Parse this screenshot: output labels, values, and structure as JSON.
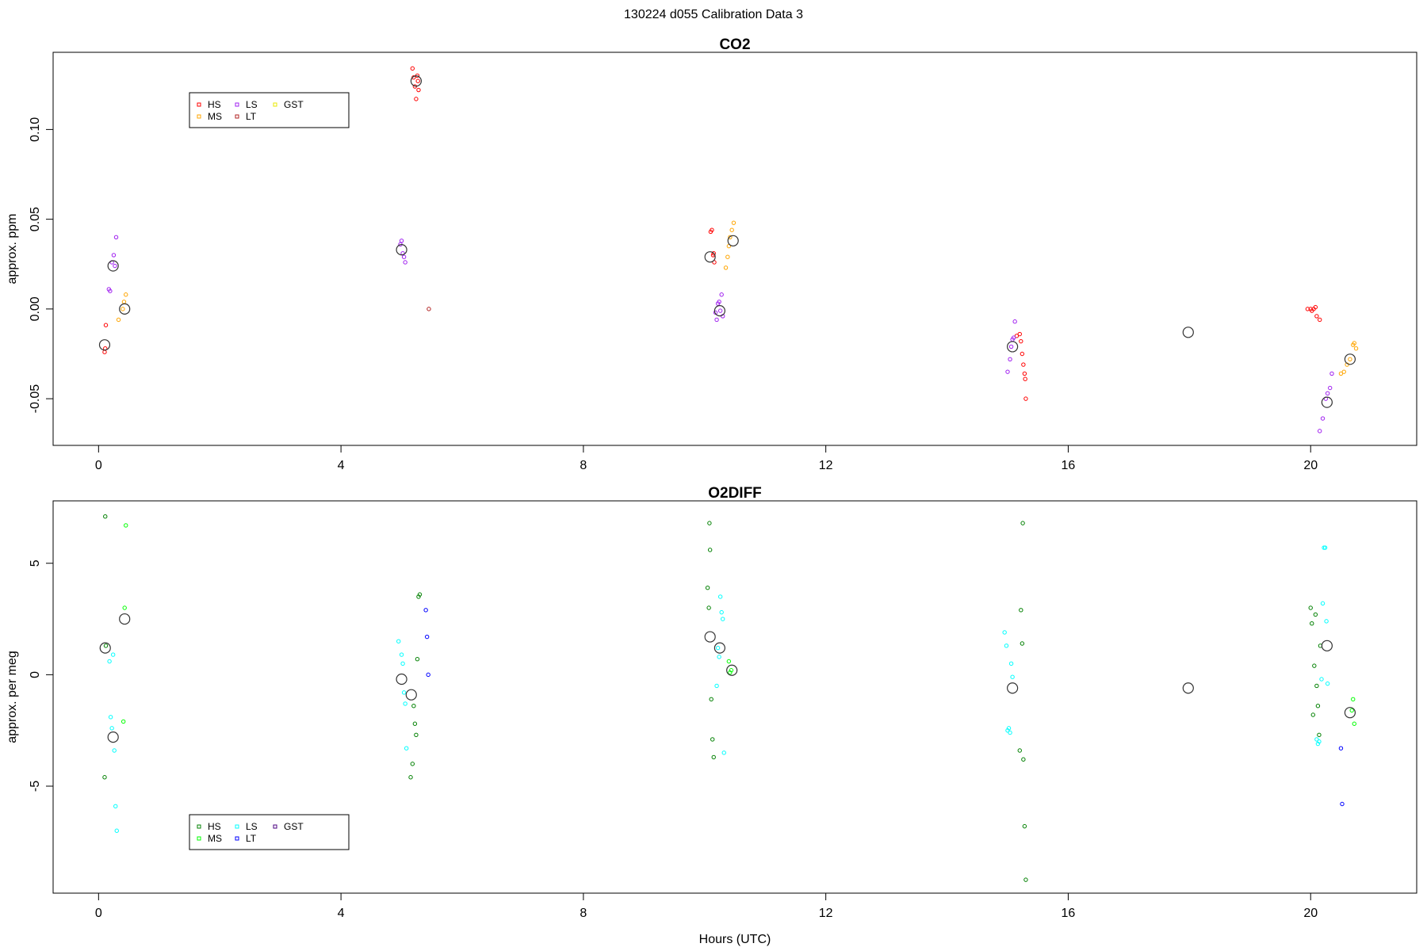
{
  "page": {
    "title": "130224   d055   Calibration Data 3"
  },
  "chart_data": [
    {
      "type": "scatter",
      "title": "CO2",
      "xlabel": "",
      "ylabel": "approx. ppm",
      "xlim": [
        -0.75,
        21.75
      ],
      "ylim": [
        -0.076,
        0.143
      ],
      "xticks": [
        0,
        4,
        8,
        12,
        16,
        20
      ],
      "xtick_labels": [
        "0",
        "4",
        "8",
        "12",
        "16",
        "20"
      ],
      "yticks": [
        -0.05,
        0,
        0.05,
        0.1
      ],
      "ytick_labels": [
        "-0.05",
        "0.00",
        "0.05",
        "0.10"
      ],
      "legend": {
        "placement": "top-left",
        "entries": [
          "HS",
          "MS",
          "LS",
          "LT",
          "GST"
        ]
      },
      "series": [
        {
          "name": "HS",
          "color": "#ff0000",
          "points": [
            [
              0.1,
              -0.024
            ],
            [
              0.11,
              -0.022
            ],
            [
              0.12,
              -0.009
            ],
            [
              5.18,
              0.134
            ],
            [
              5.2,
              0.129
            ],
            [
              5.22,
              0.124
            ],
            [
              5.24,
              0.117
            ],
            [
              5.26,
              0.13
            ],
            [
              5.27,
              0.127
            ],
            [
              5.28,
              0.122
            ],
            [
              10.1,
              0.043
            ],
            [
              10.12,
              0.044
            ],
            [
              10.14,
              0.03
            ],
            [
              10.15,
              0.031
            ],
            [
              10.16,
              0.026
            ],
            [
              15.15,
              -0.015
            ],
            [
              15.2,
              -0.014
            ],
            [
              15.22,
              -0.018
            ],
            [
              15.24,
              -0.025
            ],
            [
              15.26,
              -0.031
            ],
            [
              15.28,
              -0.036
            ],
            [
              15.29,
              -0.039
            ],
            [
              15.3,
              -0.05
            ],
            [
              19.95,
              0.0
            ],
            [
              20.0,
              0.0
            ],
            [
              20.02,
              -0.001
            ],
            [
              20.05,
              0.0
            ],
            [
              20.08,
              0.001
            ],
            [
              20.1,
              -0.004
            ],
            [
              20.15,
              -0.006
            ]
          ]
        },
        {
          "name": "MS",
          "color": "#ffa500",
          "points": [
            [
              0.33,
              -0.006
            ],
            [
              0.4,
              0.0
            ],
            [
              0.42,
              0.004
            ],
            [
              0.45,
              0.008
            ],
            [
              10.35,
              0.023
            ],
            [
              10.38,
              0.029
            ],
            [
              10.4,
              0.035
            ],
            [
              10.42,
              0.04
            ],
            [
              10.45,
              0.044
            ],
            [
              10.48,
              0.048
            ],
            [
              20.5,
              -0.036
            ],
            [
              20.55,
              -0.035
            ],
            [
              20.6,
              -0.031
            ],
            [
              20.65,
              -0.028
            ],
            [
              20.7,
              -0.02
            ],
            [
              20.72,
              -0.019
            ],
            [
              20.75,
              -0.022
            ]
          ]
        },
        {
          "name": "LS",
          "color": "#a020f0",
          "points": [
            [
              0.17,
              0.011
            ],
            [
              0.19,
              0.01
            ],
            [
              0.22,
              0.026
            ],
            [
              0.25,
              0.03
            ],
            [
              0.27,
              0.024
            ],
            [
              0.29,
              0.04
            ],
            [
              4.98,
              0.036
            ],
            [
              5.0,
              0.038
            ],
            [
              5.02,
              0.031
            ],
            [
              5.04,
              0.029
            ],
            [
              5.06,
              0.026
            ],
            [
              10.18,
              -0.002
            ],
            [
              10.2,
              -0.006
            ],
            [
              10.22,
              0.003
            ],
            [
              10.24,
              0.004
            ],
            [
              10.26,
              -0.001
            ],
            [
              10.28,
              0.008
            ],
            [
              10.3,
              -0.004
            ],
            [
              15.0,
              -0.035
            ],
            [
              15.04,
              -0.028
            ],
            [
              15.06,
              -0.021
            ],
            [
              15.08,
              -0.017
            ],
            [
              15.1,
              -0.016
            ],
            [
              15.12,
              -0.007
            ],
            [
              20.15,
              -0.068
            ],
            [
              20.2,
              -0.061
            ],
            [
              20.25,
              -0.05
            ],
            [
              20.28,
              -0.047
            ],
            [
              20.32,
              -0.044
            ],
            [
              20.35,
              -0.036
            ]
          ]
        },
        {
          "name": "LT",
          "color": "#b22222",
          "points": [
            [
              5.45,
              0.0
            ]
          ]
        },
        {
          "name": "GST",
          "color": "#e8e800",
          "points": []
        },
        {
          "name": "",
          "color": "#000000",
          "kind": "mean",
          "points": [
            [
              0.1,
              -0.02
            ],
            [
              0.24,
              0.024
            ],
            [
              0.43,
              0.0
            ],
            [
              5.0,
              0.033
            ],
            [
              5.24,
              0.127
            ],
            [
              10.09,
              0.029
            ],
            [
              10.25,
              -0.001
            ],
            [
              10.47,
              0.038
            ],
            [
              15.08,
              -0.021
            ],
            [
              17.98,
              -0.013
            ],
            [
              20.27,
              -0.052
            ],
            [
              20.65,
              -0.028
            ]
          ]
        }
      ]
    },
    {
      "type": "scatter",
      "title": "O2DIFF",
      "xlabel": "Hours (UTC)",
      "ylabel": "approx. per meg",
      "xlim": [
        -0.75,
        21.75
      ],
      "ylim": [
        -9.8,
        7.8
      ],
      "xticks": [
        0,
        4,
        8,
        12,
        16,
        20
      ],
      "xtick_labels": [
        "0",
        "4",
        "8",
        "12",
        "16",
        "20"
      ],
      "yticks": [
        -5,
        0,
        5
      ],
      "ytick_labels": [
        "-5",
        "0",
        "5"
      ],
      "legend": {
        "placement": "bottom-left",
        "entries": [
          "HS",
          "MS",
          "LS",
          "LT",
          "GST"
        ]
      },
      "series": [
        {
          "name": "HS",
          "color": "#008000",
          "points": [
            [
              0.11,
              7.1
            ],
            [
              0.1,
              -4.6
            ],
            [
              0.12,
              1.3
            ],
            [
              5.15,
              -4.6
            ],
            [
              5.18,
              -4.0
            ],
            [
              5.2,
              -1.4
            ],
            [
              5.22,
              -2.2
            ],
            [
              5.24,
              -2.7
            ],
            [
              5.26,
              0.7
            ],
            [
              5.28,
              3.5
            ],
            [
              5.3,
              3.6
            ],
            [
              10.05,
              3.9
            ],
            [
              10.07,
              3.0
            ],
            [
              10.09,
              5.6
            ],
            [
              10.08,
              6.8
            ],
            [
              10.11,
              -1.1
            ],
            [
              10.13,
              -2.9
            ],
            [
              10.15,
              -3.7
            ],
            [
              15.2,
              -3.4
            ],
            [
              15.22,
              2.9
            ],
            [
              15.24,
              1.4
            ],
            [
              15.26,
              -3.8
            ],
            [
              15.28,
              -6.8
            ],
            [
              15.3,
              -9.2
            ],
            [
              15.25,
              6.8
            ],
            [
              20.0,
              3.0
            ],
            [
              20.02,
              2.3
            ],
            [
              20.04,
              -1.8
            ],
            [
              20.06,
              0.4
            ],
            [
              20.1,
              -0.5
            ],
            [
              20.12,
              -1.4
            ],
            [
              20.14,
              -2.7
            ],
            [
              20.16,
              1.3
            ],
            [
              20.08,
              2.7
            ]
          ]
        },
        {
          "name": "MS",
          "color": "#00ff00",
          "points": [
            [
              0.45,
              6.7
            ],
            [
              0.43,
              3.0
            ],
            [
              0.41,
              -2.1
            ],
            [
              10.4,
              0.6
            ],
            [
              10.42,
              0.1
            ],
            [
              10.44,
              0.2
            ],
            [
              20.7,
              -1.1
            ],
            [
              20.72,
              -2.2
            ],
            [
              20.68,
              -1.6
            ]
          ]
        },
        {
          "name": "LS",
          "color": "#00ffff",
          "points": [
            [
              0.18,
              0.6
            ],
            [
              0.2,
              -1.9
            ],
            [
              0.22,
              -2.4
            ],
            [
              0.24,
              0.9
            ],
            [
              0.26,
              -3.4
            ],
            [
              0.28,
              -5.9
            ],
            [
              0.3,
              -7.0
            ],
            [
              4.95,
              1.5
            ],
            [
              5.0,
              0.9
            ],
            [
              5.02,
              0.5
            ],
            [
              5.04,
              -0.8
            ],
            [
              5.06,
              -1.3
            ],
            [
              5.08,
              -3.3
            ],
            [
              10.2,
              -0.5
            ],
            [
              10.22,
              1.2
            ],
            [
              10.24,
              0.8
            ],
            [
              10.26,
              3.5
            ],
            [
              10.28,
              2.8
            ],
            [
              10.3,
              2.5
            ],
            [
              10.32,
              -3.5
            ],
            [
              14.95,
              1.9
            ],
            [
              14.98,
              1.3
            ],
            [
              15.0,
              -2.5
            ],
            [
              15.02,
              -2.4
            ],
            [
              15.04,
              -2.6
            ],
            [
              15.06,
              0.5
            ],
            [
              15.08,
              -0.1
            ],
            [
              20.1,
              -2.9
            ],
            [
              20.12,
              -3.1
            ],
            [
              20.14,
              -3.0
            ],
            [
              20.18,
              -0.2
            ],
            [
              20.2,
              3.2
            ],
            [
              20.22,
              5.7
            ],
            [
              20.24,
              5.7
            ],
            [
              20.26,
              2.4
            ],
            [
              20.28,
              -0.4
            ]
          ]
        },
        {
          "name": "LT",
          "color": "#0000ff",
          "points": [
            [
              5.4,
              2.9
            ],
            [
              5.42,
              1.7
            ],
            [
              5.44,
              0.0
            ],
            [
              20.5,
              -3.3
            ],
            [
              20.52,
              -5.8
            ]
          ]
        },
        {
          "name": "GST",
          "color": "#4b0082",
          "points": []
        },
        {
          "name": "",
          "color": "#000000",
          "kind": "mean",
          "points": [
            [
              0.11,
              1.2
            ],
            [
              0.24,
              -2.8
            ],
            [
              0.43,
              2.5
            ],
            [
              5.0,
              -0.2
            ],
            [
              5.16,
              -0.9
            ],
            [
              10.09,
              1.7
            ],
            [
              10.25,
              1.2
            ],
            [
              10.45,
              0.2
            ],
            [
              15.08,
              -0.6
            ],
            [
              17.98,
              -0.6
            ],
            [
              20.27,
              1.3
            ],
            [
              20.65,
              -1.7
            ]
          ]
        }
      ]
    }
  ]
}
